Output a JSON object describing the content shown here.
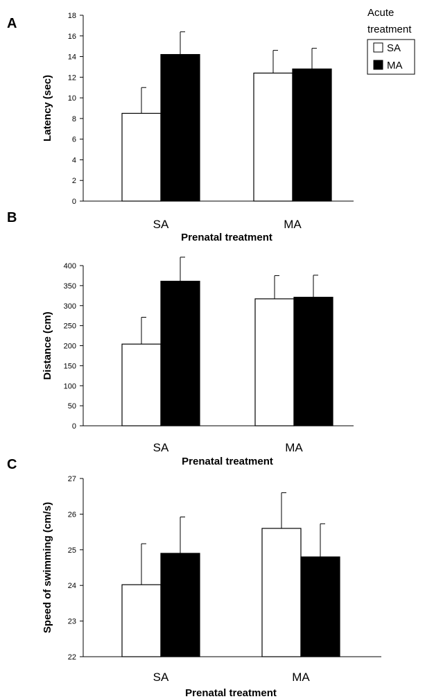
{
  "legend": {
    "title_line1": "Acute",
    "title_line2": "treatment",
    "items": [
      {
        "label": "SA",
        "color": "#ffffff"
      },
      {
        "label": "MA",
        "color": "#000000"
      }
    ]
  },
  "colors": {
    "SA": "#ffffff",
    "MA": "#000000",
    "axis": "#000000"
  },
  "chart_data": [
    {
      "type": "bar",
      "panel_label": "A",
      "categories": [
        "SA",
        "MA"
      ],
      "series": [
        {
          "name": "SA",
          "values": [
            8.5,
            12.4
          ],
          "errors": [
            2.5,
            2.2
          ]
        },
        {
          "name": "MA",
          "values": [
            14.2,
            12.8
          ],
          "errors": [
            2.2,
            2.0
          ]
        }
      ],
      "xlabel": "Prenatal treatment",
      "ylabel": "Latency (sec)",
      "ylim": [
        0,
        18
      ],
      "yticks": [
        "0",
        "2",
        "4",
        "6",
        "8",
        "10",
        "12",
        "14",
        "16",
        "18"
      ]
    },
    {
      "type": "bar",
      "panel_label": "B",
      "categories": [
        "SA",
        "MA"
      ],
      "series": [
        {
          "name": "SA",
          "values": [
            204,
            317
          ],
          "errors": [
            67,
            58
          ]
        },
        {
          "name": "MA",
          "values": [
            361,
            321
          ],
          "errors": [
            60,
            55
          ]
        }
      ],
      "xlabel": "Prenatal treatment",
      "ylabel": "Distance (cm)",
      "ylim": [
        0,
        400
      ],
      "yticks": [
        "0",
        "50",
        "100",
        "150",
        "200",
        "250",
        "300",
        "350",
        "400"
      ]
    },
    {
      "type": "bar",
      "panel_label": "C",
      "categories": [
        "SA",
        "MA"
      ],
      "series": [
        {
          "name": "SA",
          "values": [
            24.02,
            25.6
          ],
          "errors": [
            1.15,
            1.0
          ]
        },
        {
          "name": "MA",
          "values": [
            24.9,
            24.8
          ],
          "errors": [
            1.02,
            0.93
          ]
        }
      ],
      "xlabel": "Prenatal treatment",
      "ylabel": "Speed of swimming (cm/s)",
      "ylim": [
        22,
        27
      ],
      "yticks": [
        "22",
        "23",
        "24",
        "25",
        "26",
        "27"
      ]
    }
  ]
}
